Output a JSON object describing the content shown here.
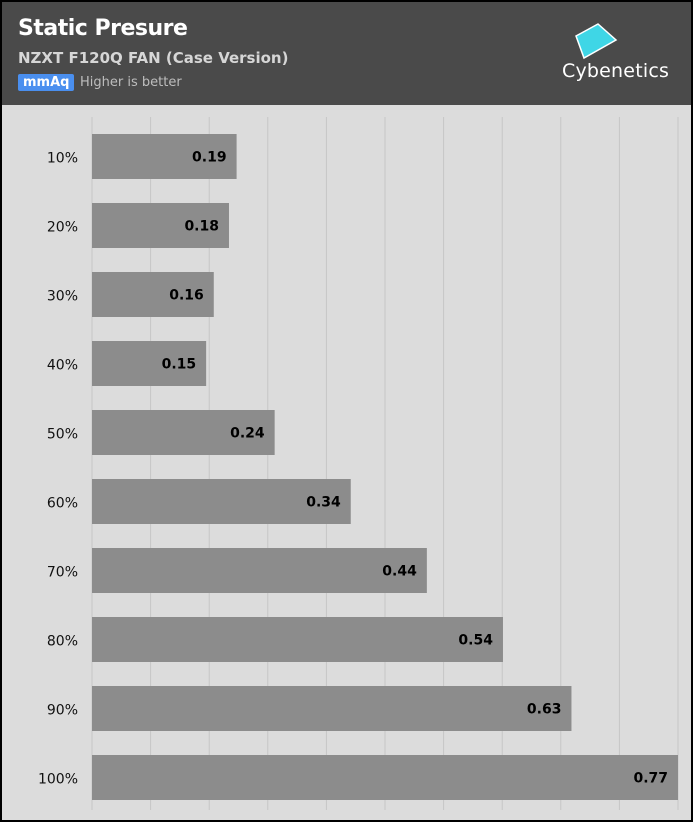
{
  "header": {
    "title": "Static Presure",
    "subtitle": "NZXT F120Q FAN (Case Version)",
    "unit": "mmAq",
    "note": "Higher is better",
    "logo_text": "Cybenetics"
  },
  "colors": {
    "header_bg": "#4a4a4a",
    "plot_bg": "#dcdcdc",
    "bar": "#8c8c8c",
    "badge": "#4a8fef",
    "logo_accent": "#3fd6e6"
  },
  "chart_data": {
    "type": "bar",
    "orientation": "horizontal",
    "title": "Static Presure",
    "subtitle": "NZXT F120Q FAN (Case Version)",
    "unit": "mmAq",
    "categories": [
      "10%",
      "20%",
      "30%",
      "40%",
      "50%",
      "60%",
      "70%",
      "80%",
      "90%",
      "100%"
    ],
    "values": [
      0.19,
      0.18,
      0.16,
      0.15,
      0.24,
      0.34,
      0.44,
      0.54,
      0.63,
      0.77
    ],
    "xlim": [
      0,
      0.77
    ],
    "grid": true,
    "data_labels": true
  }
}
